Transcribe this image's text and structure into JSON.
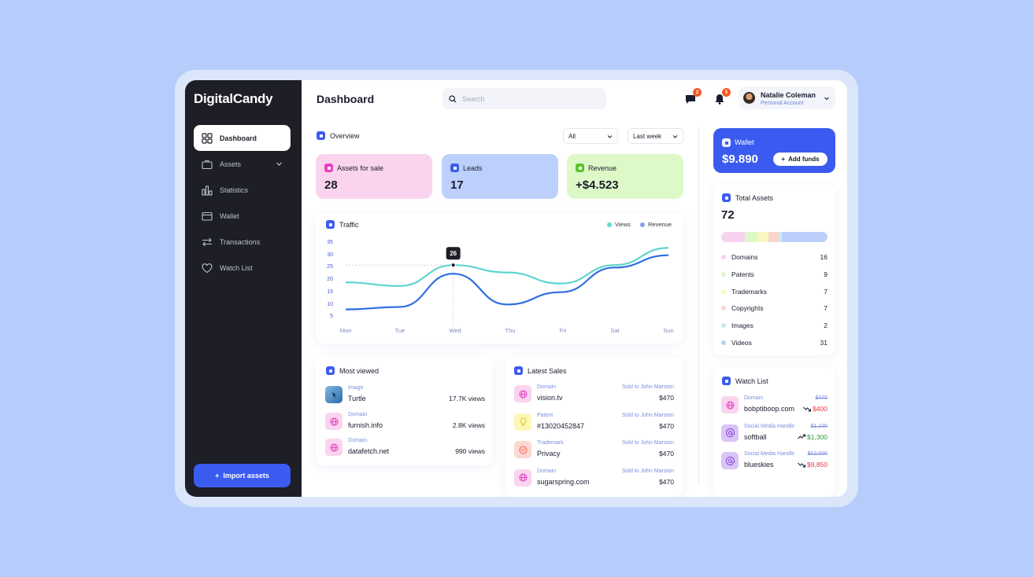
{
  "app": {
    "logo": "DigitalCandy",
    "page_title": "Dashboard"
  },
  "sidebar": {
    "items": [
      {
        "label": "Dashboard",
        "icon": "grid-icon",
        "active": true
      },
      {
        "label": "Assets",
        "icon": "briefcase-icon",
        "has_chevron": true
      },
      {
        "label": "Statistics",
        "icon": "bar-chart-icon"
      },
      {
        "label": "Wallet",
        "icon": "wallet-icon"
      },
      {
        "label": "Transactions",
        "icon": "swap-icon"
      },
      {
        "label": "Watch List",
        "icon": "heart-icon"
      }
    ],
    "import_label": "Import assets"
  },
  "header": {
    "search_placeholder": "Search",
    "messages_count": "2",
    "notifications_count": "5",
    "user_name": "Natalie Coleman",
    "user_role": "Personal Account"
  },
  "overview": {
    "title": "Overview",
    "filter_all": "All",
    "filter_period": "Last week",
    "kpis": [
      {
        "label": "Assets for sale",
        "value": "28",
        "color": "#fad4ee",
        "icon_color": "#e640c4"
      },
      {
        "label": "Leads",
        "value": "17",
        "color": "#bcd0fb",
        "icon_color": "#3b5bf0"
      },
      {
        "label": "Revenue",
        "value": "+$4.523",
        "color": "#ddf9c8",
        "icon_color": "#5cc42e"
      }
    ]
  },
  "traffic": {
    "title": "Traffic",
    "tooltip": "26",
    "legend": [
      {
        "name": "Views",
        "color": "#5fd6cf"
      },
      {
        "name": "Revenue",
        "color": "#7ea2ef"
      }
    ]
  },
  "chart_data": {
    "type": "line",
    "title": "Traffic",
    "categories": [
      "Mon",
      "Tue",
      "Wed",
      "Thu",
      "Fri",
      "Sat",
      "Sun"
    ],
    "yticks": [
      35,
      30,
      25,
      20,
      15,
      10,
      5
    ],
    "ylim": [
      5,
      35
    ],
    "series": [
      {
        "name": "Views",
        "color": "#5fd6cf",
        "values": [
          19,
          17.5,
          26,
          23,
          18.5,
          26,
          33
        ]
      },
      {
        "name": "Revenue",
        "color": "#2f6fe0",
        "values": [
          8,
          9,
          22.5,
          10,
          15,
          25,
          30
        ]
      }
    ],
    "highlight": {
      "category": "Wed",
      "value": 26
    },
    "grid": false,
    "legend_position": "top-right"
  },
  "most_viewed": {
    "title": "Most viewed",
    "items": [
      {
        "category": "Image",
        "name": "Turtle",
        "views": "17.7K views",
        "thumb": "image"
      },
      {
        "category": "Domain",
        "name": "furnish.info",
        "views": "2.8K views",
        "thumb": "globe"
      },
      {
        "category": "Domain",
        "name": "datafetch.net",
        "views": "990 views",
        "thumb": "globe"
      }
    ]
  },
  "latest_sales": {
    "title": "Latest Sales",
    "items": [
      {
        "category": "Domain",
        "name": "vision.tv",
        "buyer": "Sold to John Marston",
        "price": "$470",
        "thumb_color": "#fad4ee",
        "icon_color": "#e640c4"
      },
      {
        "category": "Patent",
        "name": "#13020452847",
        "buyer": "Sold to John Marston",
        "price": "$470",
        "thumb_color": "#fcf7b8",
        "icon_color": "#e6c81e"
      },
      {
        "category": "Trademark",
        "name": "Privacy",
        "buyer": "Sold to John Marston",
        "price": "$470",
        "thumb_color": "#fdd8d2",
        "icon_color": "#f0604a"
      },
      {
        "category": "Domain",
        "name": "sugarspring.com",
        "buyer": "Sold to John Marston",
        "price": "$470",
        "thumb_color": "#fad4ee",
        "icon_color": "#e640c4"
      }
    ]
  },
  "wallet": {
    "label": "Wallet",
    "value": "$9.890",
    "add_funds_label": "Add funds"
  },
  "total_assets": {
    "title": "Total Assets",
    "value": "72",
    "items": [
      {
        "name": "Domains",
        "count": "16",
        "color": "#f7d3ef"
      },
      {
        "name": "Patents",
        "count": "9",
        "color": "#dff7c6"
      },
      {
        "name": "Trademarks",
        "count": "7",
        "color": "#fbf6c0"
      },
      {
        "name": "Copyrights",
        "count": "7",
        "color": "#fdd5cf"
      },
      {
        "name": "Images",
        "count": "2",
        "color": "#c8ebef"
      },
      {
        "name": "Videos",
        "count": "31",
        "color": "#bcd0fb"
      }
    ]
  },
  "watch_list": {
    "title": "Watch List",
    "items": [
      {
        "category": "Domain",
        "name": "bobptiboop.com",
        "old_price": "$470",
        "new_price": "$400",
        "trend": "down",
        "thumb": "globe"
      },
      {
        "category": "Social Media Handle",
        "name": "softball",
        "old_price": "$1,100",
        "new_price": "$1,300",
        "trend": "up",
        "thumb": "at"
      },
      {
        "category": "Social Media Handle",
        "name": "blueskies",
        "old_price": "$12,000",
        "new_price": "$9,850",
        "trend": "down",
        "thumb": "at"
      }
    ]
  }
}
